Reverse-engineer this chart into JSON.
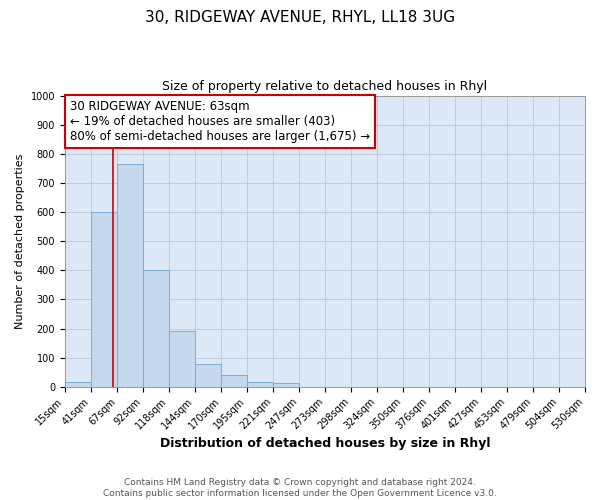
{
  "title_line1": "30, RIDGEWAY AVENUE, RHYL, LL18 3UG",
  "title_line2": "Size of property relative to detached houses in Rhyl",
  "xlabel": "Distribution of detached houses by size in Rhyl",
  "ylabel": "Number of detached properties",
  "bar_edges": [
    15,
    41,
    67,
    92,
    118,
    144,
    170,
    195,
    221,
    247,
    273,
    298,
    324,
    350,
    376,
    401,
    427,
    453,
    479,
    504,
    530
  ],
  "bar_heights": [
    15,
    600,
    765,
    400,
    190,
    78,
    40,
    18,
    12,
    0,
    0,
    0,
    0,
    0,
    0,
    0,
    0,
    0,
    0,
    0
  ],
  "bar_color": "#c5d8ee",
  "bar_edgecolor": "#7aadd4",
  "bar_linewidth": 0.7,
  "vline_x": 63,
  "vline_color": "#cc0000",
  "vline_linewidth": 1.2,
  "annotation_text_line1": "30 RIDGEWAY AVENUE: 63sqm",
  "annotation_text_line2": "← 19% of detached houses are smaller (403)",
  "annotation_text_line3": "80% of semi-detached houses are larger (1,675) →",
  "ylim": [
    0,
    1000
  ],
  "yticks": [
    0,
    100,
    200,
    300,
    400,
    500,
    600,
    700,
    800,
    900,
    1000
  ],
  "xtick_labels": [
    "15sqm",
    "41sqm",
    "67sqm",
    "92sqm",
    "118sqm",
    "144sqm",
    "170sqm",
    "195sqm",
    "221sqm",
    "247sqm",
    "273sqm",
    "298sqm",
    "324sqm",
    "350sqm",
    "376sqm",
    "401sqm",
    "427sqm",
    "453sqm",
    "479sqm",
    "504sqm",
    "530sqm"
  ],
  "background_color": "#ffffff",
  "plot_bg_color": "#dce8f5",
  "grid_color": "#b8c8d8",
  "footer_line1": "Contains HM Land Registry data © Crown copyright and database right 2024.",
  "footer_line2": "Contains public sector information licensed under the Open Government Licence v3.0.",
  "title_fontsize": 11,
  "subtitle_fontsize": 9,
  "ylabel_fontsize": 8,
  "xlabel_fontsize": 9,
  "tick_fontsize": 7,
  "footer_fontsize": 6.5,
  "annot_fontsize": 8.5
}
